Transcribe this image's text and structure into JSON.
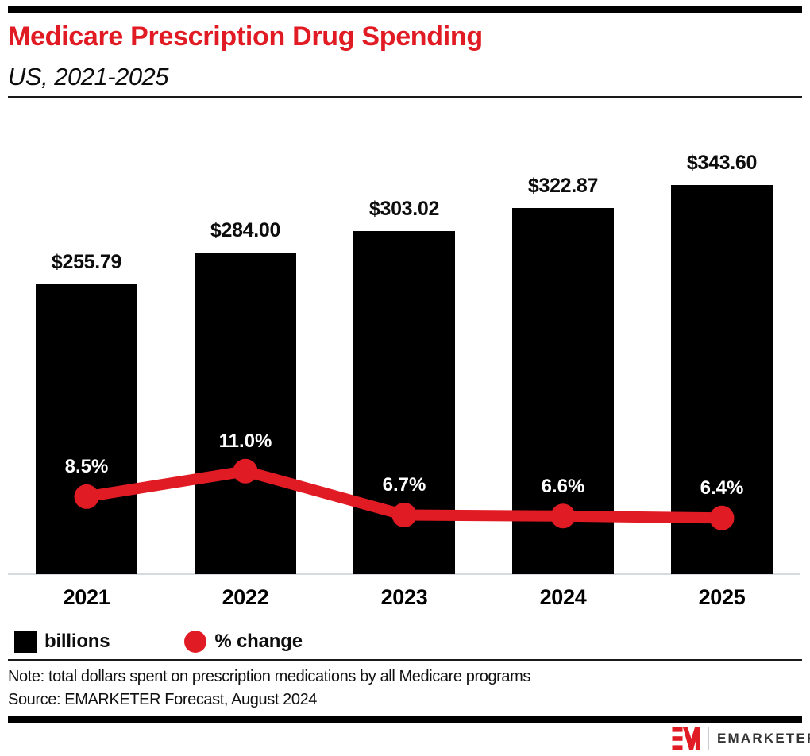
{
  "header": {
    "title": "Medicare Prescription Drug Spending",
    "subtitle": "US, 2021-2025"
  },
  "chart_data": {
    "type": "bar",
    "subtype": "bar-with-line-overlay",
    "categories": [
      "2021",
      "2022",
      "2023",
      "2024",
      "2025"
    ],
    "series": [
      {
        "name": "billions",
        "type": "bar",
        "values": [
          255.79,
          284.0,
          303.02,
          322.87,
          343.6
        ],
        "labels": [
          "$255.79",
          "$284.00",
          "$303.02",
          "$322.87",
          "$343.60"
        ],
        "color": "#000000"
      },
      {
        "name": "% change",
        "type": "line",
        "values": [
          8.5,
          11.0,
          6.7,
          6.6,
          6.4
        ],
        "labels": [
          "8.5%",
          "11.0%",
          "6.7%",
          "6.6%",
          "6.4%"
        ],
        "color": "#e11b23"
      }
    ],
    "title": "Medicare Prescription Drug Spending",
    "subtitle": "US, 2021-2025",
    "xlabel": "",
    "ylabel": "",
    "grid": false,
    "legend_position": "bottom"
  },
  "legend": {
    "items": [
      {
        "label": "billions",
        "swatch": "square",
        "color": "#000000"
      },
      {
        "label": "% change",
        "swatch": "circle",
        "color": "#e11b23"
      }
    ]
  },
  "note": "Note: total dollars spent on prescription medications by all Medicare programs",
  "source": "Source: EMARKETER Forecast, August 2024",
  "footer": {
    "brand": "EMARKETER",
    "logo_monogram": "EM"
  },
  "colors": {
    "accent_red": "#e11b23",
    "bar_black": "#000000",
    "baseline_gray": "#d7dae0",
    "title_red": "#e11b23"
  }
}
